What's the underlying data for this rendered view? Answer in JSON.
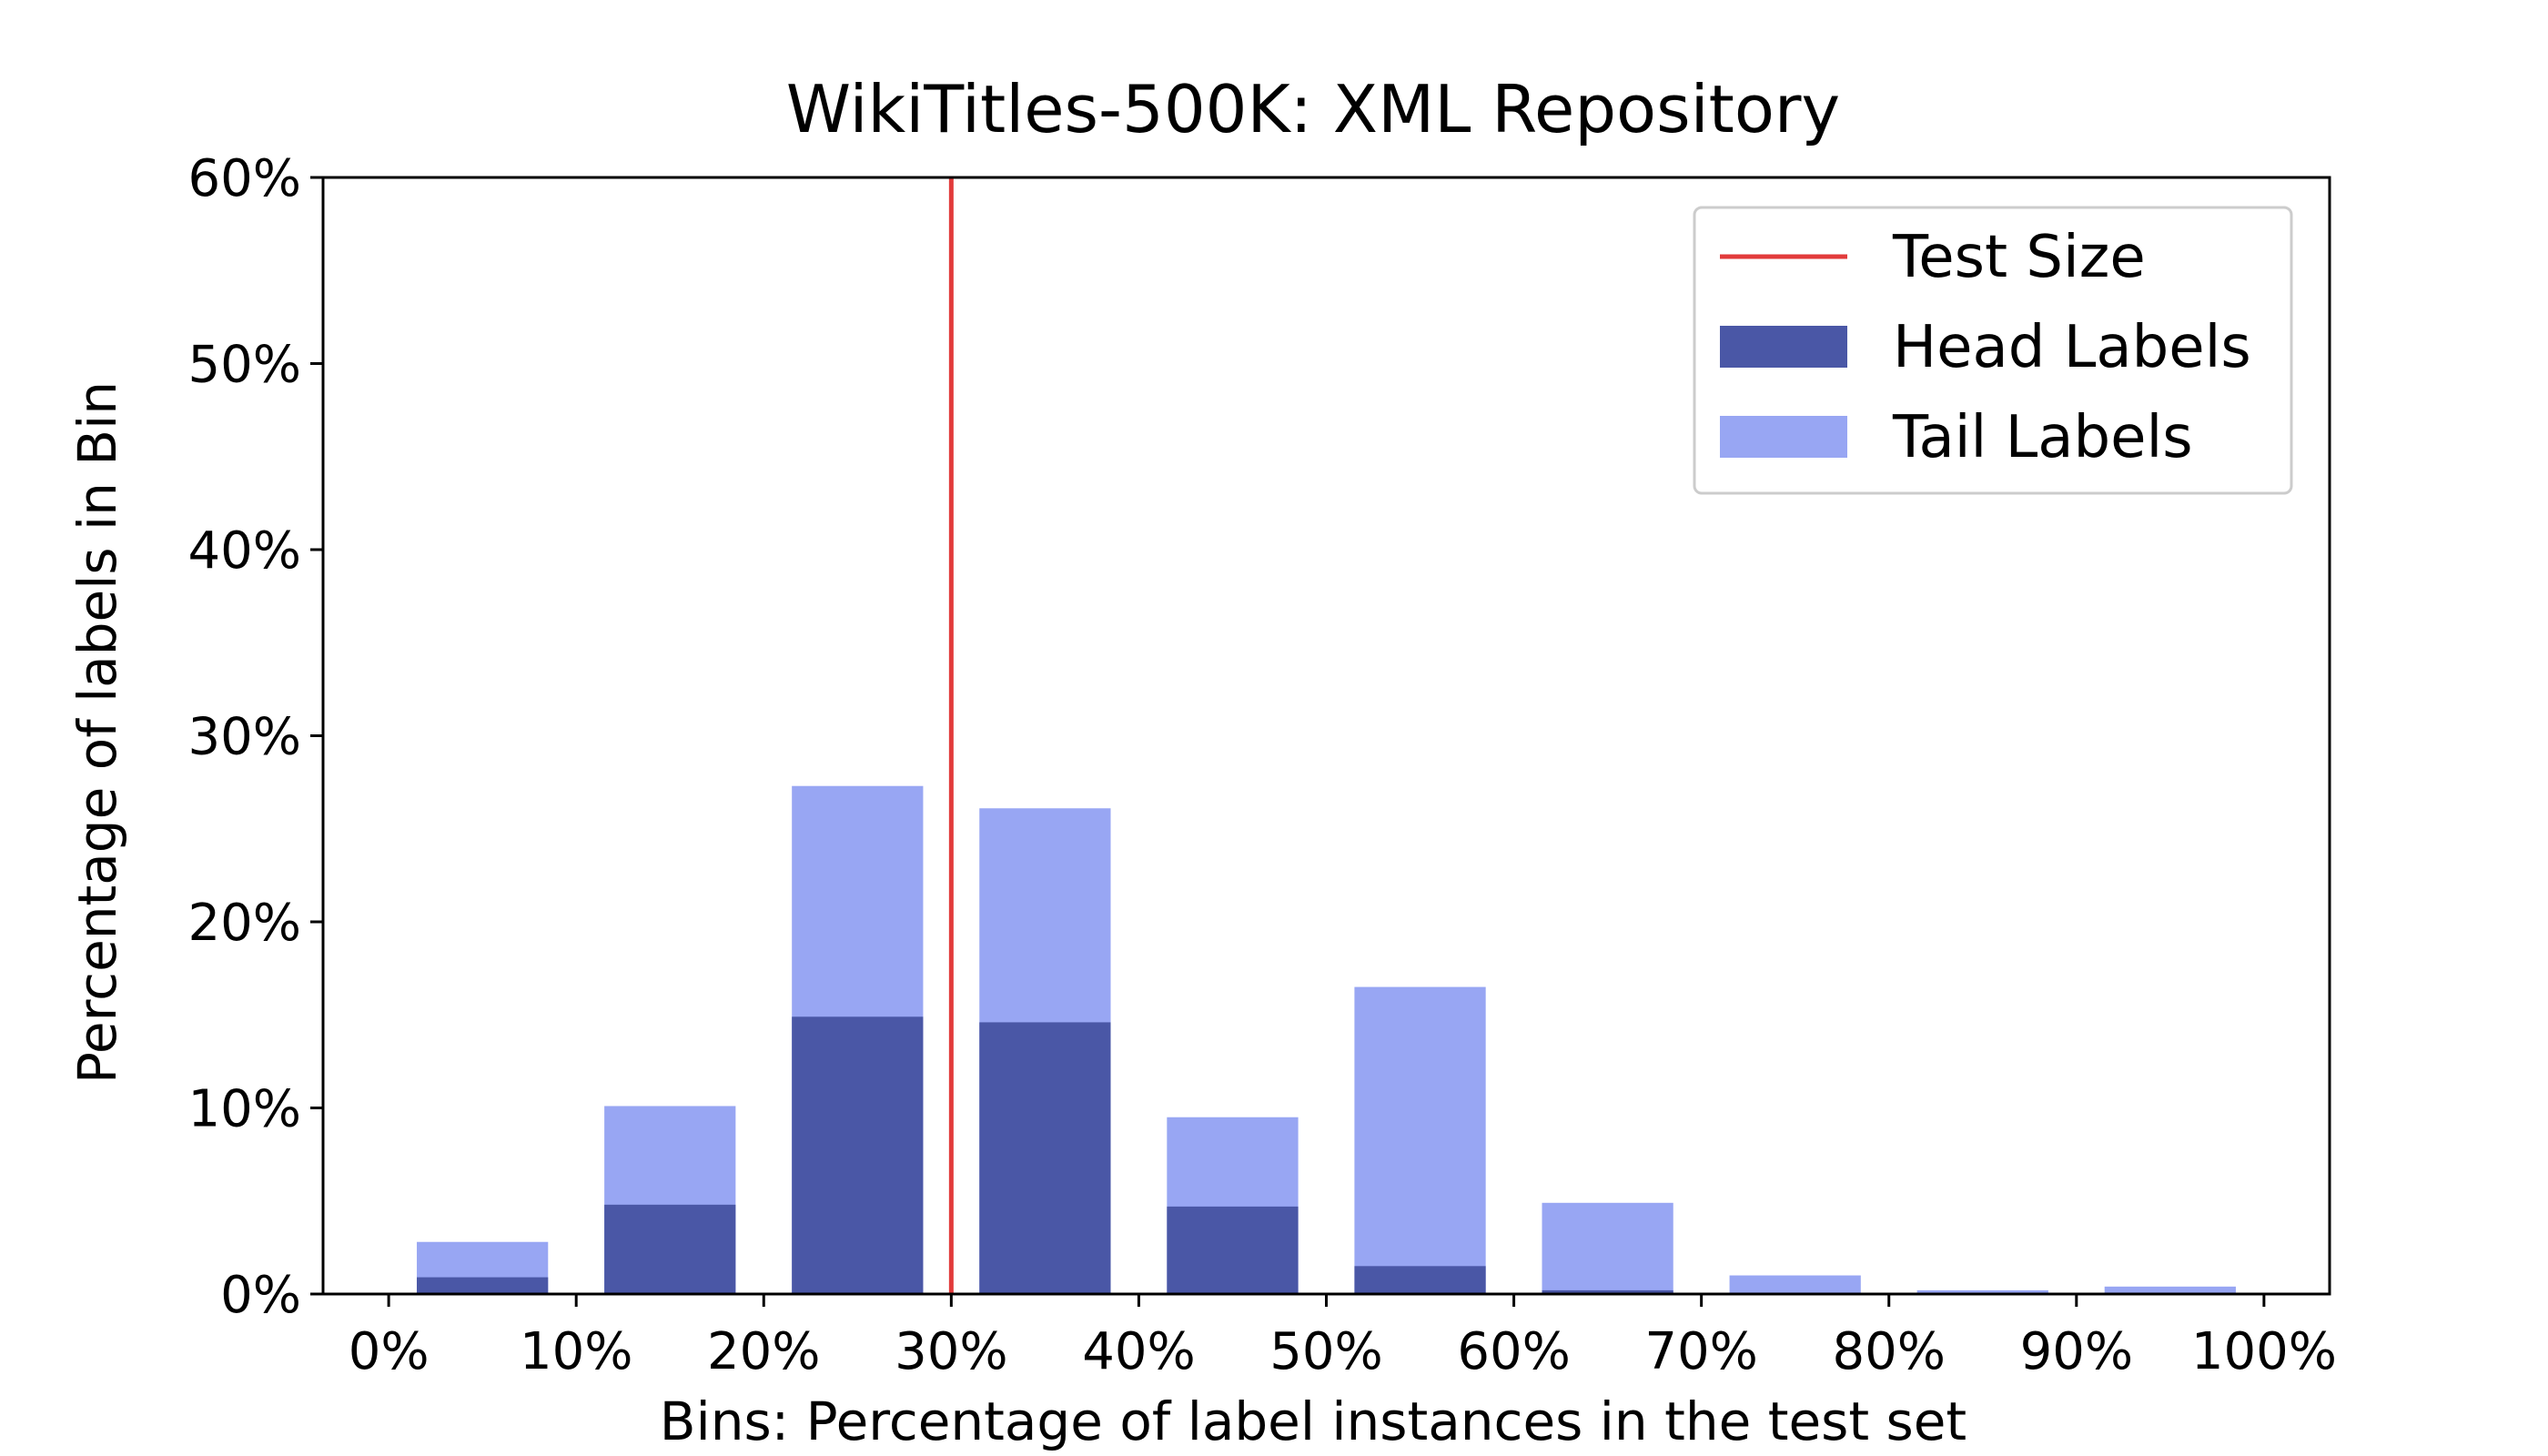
{
  "chart_data": {
    "type": "bar",
    "title": "WikiTitles-500K: XML Repository",
    "xlabel": "Bins: Percentage of label instances in the test set",
    "ylabel": "Percentage of labels in Bin",
    "bins": [
      "0-10%",
      "10-20%",
      "20-30%",
      "30-40%",
      "40-50%",
      "50-60%",
      "60-70%",
      "70-80%",
      "80-90%",
      "90-100%"
    ],
    "bin_centers": [
      5,
      15,
      25,
      35,
      45,
      55,
      65,
      75,
      85,
      95
    ],
    "series": [
      {
        "name": "Head Labels",
        "color": "#4a57a6",
        "values": [
          0.9,
          4.8,
          14.9,
          14.6,
          4.7,
          1.5,
          0.2,
          0.0,
          0.0,
          0.0
        ]
      },
      {
        "name": "Tail Labels",
        "color": "#98a6f3",
        "values": [
          2.8,
          10.1,
          27.3,
          26.1,
          9.5,
          16.5,
          4.9,
          1.0,
          0.2,
          0.4
        ]
      }
    ],
    "reference_line": {
      "name": "Test Size",
      "x": 30,
      "color": "#e23b3b"
    },
    "xlim": [
      -3.5,
      103.5
    ],
    "ylim": [
      0,
      60
    ],
    "xticks": [
      0,
      10,
      20,
      30,
      40,
      50,
      60,
      70,
      80,
      90,
      100
    ],
    "xtick_labels": [
      "0%",
      "10%",
      "20%",
      "30%",
      "40%",
      "50%",
      "60%",
      "70%",
      "80%",
      "90%",
      "100%"
    ],
    "yticks": [
      0,
      10,
      20,
      30,
      40,
      50,
      60
    ],
    "ytick_labels": [
      "0%",
      "10%",
      "20%",
      "30%",
      "40%",
      "50%",
      "60%"
    ],
    "grid": false,
    "legend_position": "top-right",
    "legend_entries": [
      "Test Size",
      "Head Labels",
      "Tail Labels"
    ]
  }
}
